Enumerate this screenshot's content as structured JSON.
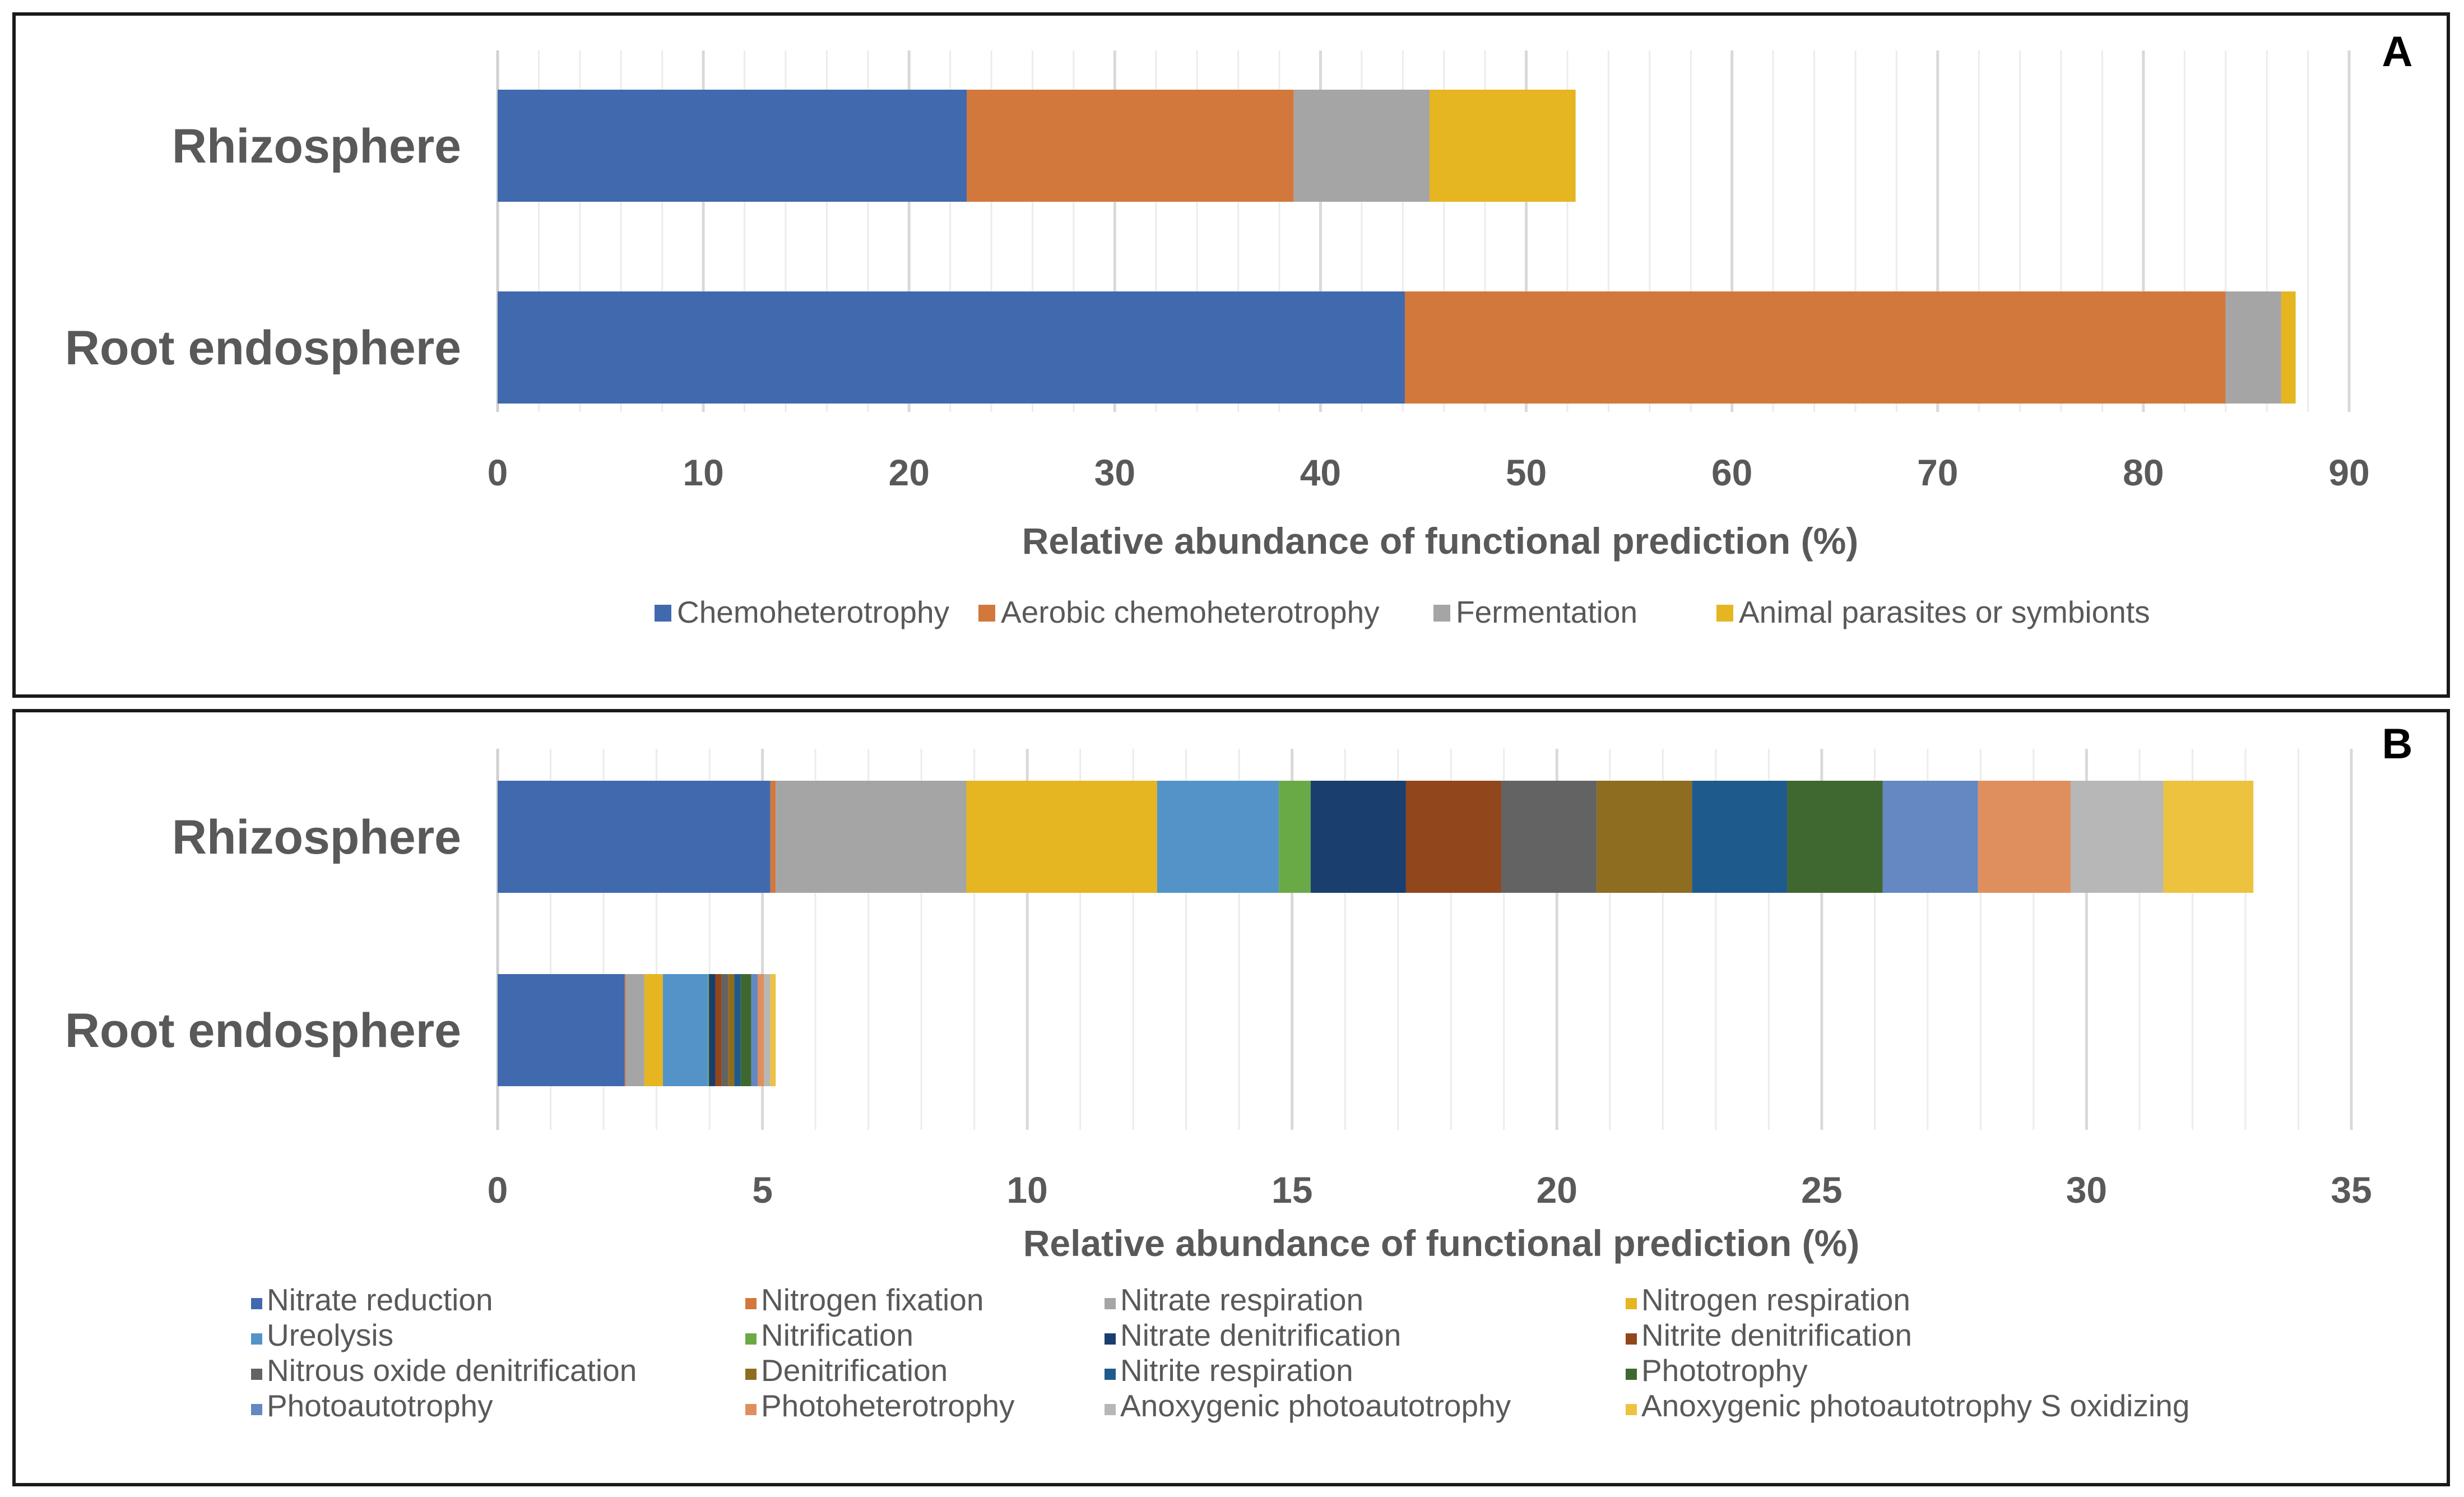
{
  "chart_data": [
    {
      "panel_label": "A",
      "type": "bar",
      "orientation": "horizontal",
      "stacked": true,
      "categories": [
        "Rhizosphere",
        "Root endosphere"
      ],
      "series": [
        {
          "name": "Chemoheterotrophy",
          "color": "#4169ae",
          "values": [
            22.8,
            44.1
          ]
        },
        {
          "name": "Aerobic chemoheterotrophy",
          "color": "#d2783c",
          "values": [
            15.9,
            39.9
          ]
        },
        {
          "name": "Fermentation",
          "color": "#a5a5a5",
          "values": [
            6.6,
            2.7
          ]
        },
        {
          "name": "Animal parasites or symbionts",
          "color": "#e5b522",
          "values": [
            7.1,
            0.7
          ]
        }
      ],
      "xlabel": "Relative abundance of functional prediction (%)",
      "xlim": [
        0,
        90
      ],
      "xticks": [
        0,
        10,
        20,
        30,
        40,
        50,
        60,
        70,
        80,
        90
      ],
      "grid": true,
      "legend": "bottom"
    },
    {
      "panel_label": "B",
      "type": "bar",
      "orientation": "horizontal",
      "stacked": true,
      "categories": [
        "Rhizosphere",
        "Root endosphere"
      ],
      "series": [
        {
          "name": "Nitrate reduction",
          "color": "#4169ae",
          "values": [
            5.15,
            2.4
          ]
        },
        {
          "name": "Nitrogen fixation",
          "color": "#d2783c",
          "values": [
            0.1,
            0.02
          ]
        },
        {
          "name": "Nitrate respiration",
          "color": "#a5a5a5",
          "values": [
            3.6,
            0.35
          ]
        },
        {
          "name": "Nitrogen respiration",
          "color": "#e5b522",
          "values": [
            3.6,
            0.35
          ]
        },
        {
          "name": "Ureolysis",
          "color": "#5493c8",
          "values": [
            2.3,
            0.85
          ]
        },
        {
          "name": "Nitrification",
          "color": "#6aaa46",
          "values": [
            0.6,
            0.02
          ]
        },
        {
          "name": "Nitrate denitrification",
          "color": "#1a3e6e",
          "values": [
            1.8,
            0.12
          ]
        },
        {
          "name": "Nitrite denitrification",
          "color": "#91461c",
          "values": [
            1.8,
            0.12
          ]
        },
        {
          "name": "Nitrous oxide denitrification",
          "color": "#636363",
          "values": [
            1.8,
            0.12
          ]
        },
        {
          "name": "Denitrification",
          "color": "#8e6c20",
          "values": [
            1.8,
            0.12
          ]
        },
        {
          "name": "Nitrite respiration",
          "color": "#1e5b8c",
          "values": [
            1.8,
            0.12
          ]
        },
        {
          "name": "Phototrophy",
          "color": "#3f6830",
          "values": [
            1.8,
            0.2
          ]
        },
        {
          "name": "Photoautotrophy",
          "color": "#6388c2",
          "values": [
            1.8,
            0.12
          ]
        },
        {
          "name": "Photoheterotrophy",
          "color": "#df8f5e",
          "values": [
            1.75,
            0.12
          ]
        },
        {
          "name": "Anoxygenic photoautotrophy",
          "color": "#b7b7b7",
          "values": [
            1.75,
            0.12
          ]
        },
        {
          "name": "Anoxygenic photoautotrophy S oxidizing",
          "color": "#edc23f",
          "values": [
            1.7,
            0.1
          ]
        }
      ],
      "xlabel": "Relative abundance of functional prediction (%)",
      "xlim": [
        0,
        35
      ],
      "xticks": [
        0,
        5,
        10,
        15,
        20,
        25,
        30,
        35
      ],
      "grid": true,
      "legend": "bottom"
    }
  ]
}
